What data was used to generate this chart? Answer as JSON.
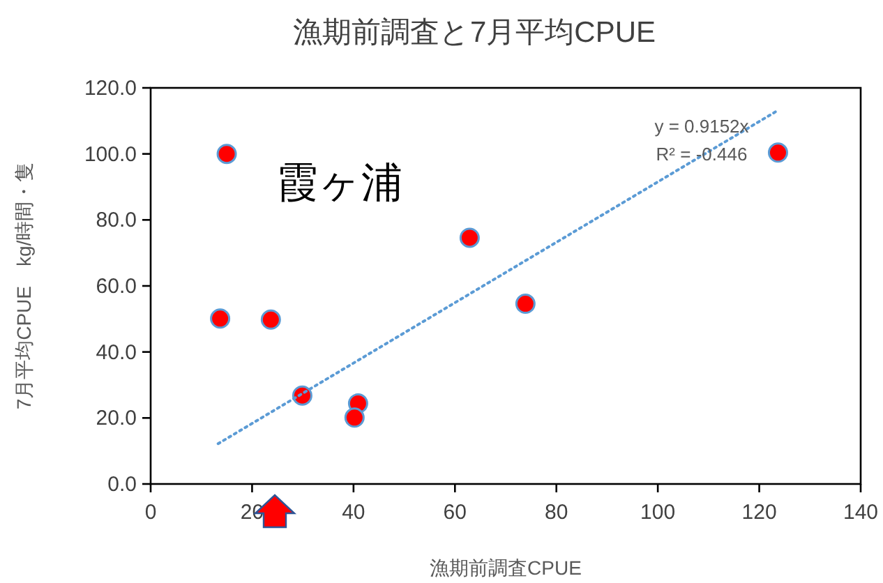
{
  "chart_data": {
    "type": "scatter",
    "title": "漁期前調査と7月平均CPUE",
    "xlabel": "漁期前調査CPUE",
    "ylabel": "7月平均CPUE　kg/時間・隻",
    "annotations": [
      "霞ヶ浦",
      "y = 0.9152x",
      "R² = -0.446"
    ],
    "series": [
      {
        "color": "#ff0000",
        "marker": "circle",
        "x": [
          15.0,
          13.7,
          23.7,
          29.9,
          40.9,
          40.2,
          62.9,
          73.9,
          123.7
        ],
        "values": [
          100,
          50.1,
          49.8,
          26.8,
          24.4,
          20.1,
          74.6,
          54.6,
          100.4
        ]
      },
      {
        "type": "line",
        "color": "#5b9bd5",
        "marker": "none",
        "line_style": "dotted",
        "x": [
          13.3,
          123.7
        ],
        "values": [
          12.2,
          113.2
        ]
      }
    ],
    "xlim": [
      0,
      140
    ],
    "xticks": [
      0,
      20,
      40,
      60,
      80,
      100,
      120,
      140
    ],
    "ylim": [
      0,
      120
    ],
    "yticks": [
      {
        "value": 0,
        "label": "0.0"
      },
      {
        "value": 20,
        "label": "20.0"
      },
      {
        "value": 40,
        "label": "40.0"
      },
      {
        "value": 60,
        "label": "60.0"
      },
      {
        "value": 80,
        "label": "80.0"
      },
      {
        "value": 100,
        "label": "100.0"
      },
      {
        "value": 120,
        "label": "120.0"
      }
    ],
    "grid": false
  }
}
